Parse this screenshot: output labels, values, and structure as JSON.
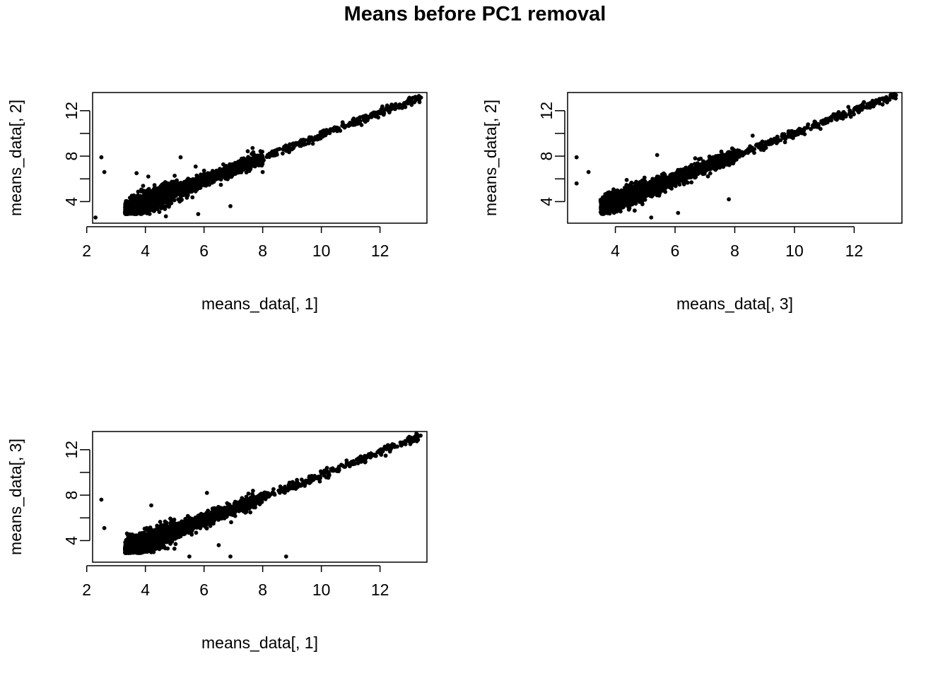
{
  "title": "Means before PC1 removal",
  "chart_data": [
    {
      "type": "scatter",
      "xlabel": "means_data[, 1]",
      "ylabel": "means_data[, 2]",
      "xlim": [
        2.2,
        13.6
      ],
      "ylim": [
        2.1,
        13.6
      ],
      "xticks": [
        2,
        4,
        6,
        8,
        10,
        12
      ],
      "yticks": [
        4,
        8,
        12
      ],
      "grid": false,
      "point_color": "#000000",
      "trend": {
        "slope": 1.0,
        "intercept": -0.15
      },
      "outliers": [
        {
          "x": 2.5,
          "y": 7.9
        },
        {
          "x": 2.6,
          "y": 6.6
        },
        {
          "x": 3.7,
          "y": 6.5
        },
        {
          "x": 4.1,
          "y": 6.2
        },
        {
          "x": 5.2,
          "y": 7.9
        },
        {
          "x": 6.9,
          "y": 3.6
        },
        {
          "x": 5.8,
          "y": 2.9
        },
        {
          "x": 8.0,
          "y": 6.6
        },
        {
          "x": 2.3,
          "y": 2.6
        },
        {
          "x": 4.7,
          "y": 2.7
        }
      ]
    },
    {
      "type": "scatter",
      "xlabel": "means_data[, 3]",
      "ylabel": "means_data[, 2]",
      "xlim": [
        2.4,
        13.6
      ],
      "ylim": [
        2.1,
        13.6
      ],
      "xticks": [
        4,
        6,
        8,
        10,
        12
      ],
      "yticks": [
        4,
        8,
        12
      ],
      "grid": false,
      "point_color": "#000000",
      "trend": {
        "slope": 1.0,
        "intercept": 0.0
      },
      "outliers": [
        {
          "x": 2.7,
          "y": 7.9
        },
        {
          "x": 3.1,
          "y": 6.6
        },
        {
          "x": 2.7,
          "y": 5.6
        },
        {
          "x": 5.4,
          "y": 8.1
        },
        {
          "x": 6.1,
          "y": 3.0
        },
        {
          "x": 5.2,
          "y": 2.6
        },
        {
          "x": 7.8,
          "y": 4.2
        },
        {
          "x": 8.6,
          "y": 9.8
        }
      ]
    },
    {
      "type": "scatter",
      "xlabel": "means_data[, 1]",
      "ylabel": "means_data[, 3]",
      "xlim": [
        2.2,
        13.6
      ],
      "ylim": [
        2.1,
        13.6
      ],
      "xticks": [
        2,
        4,
        6,
        8,
        10,
        12
      ],
      "yticks": [
        4,
        8,
        12
      ],
      "grid": false,
      "point_color": "#000000",
      "trend": {
        "slope": 1.0,
        "intercept": -0.2
      },
      "outliers": [
        {
          "x": 2.5,
          "y": 7.6
        },
        {
          "x": 2.6,
          "y": 5.1
        },
        {
          "x": 6.1,
          "y": 8.2
        },
        {
          "x": 6.9,
          "y": 2.6
        },
        {
          "x": 8.8,
          "y": 2.6
        },
        {
          "x": 6.5,
          "y": 3.6
        },
        {
          "x": 4.2,
          "y": 7.1
        },
        {
          "x": 5.5,
          "y": 2.6
        }
      ]
    }
  ]
}
